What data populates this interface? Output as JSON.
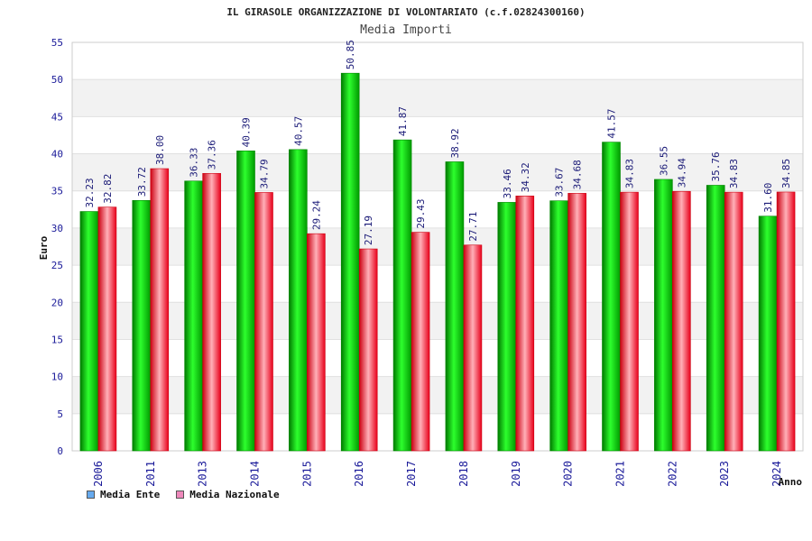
{
  "colors": {
    "ente": "#00cc00",
    "nazionale": "#ff2233",
    "legend_ente": "#66aaee",
    "legend_nazionale": "#ee88bb",
    "text": "#1a1a99"
  },
  "chart_data": {
    "type": "bar",
    "title": "IL GIRASOLE ORGANIZZAZIONE DI VOLONTARIATO (c.f.02824300160)",
    "subtitle": "Media Importi",
    "xlabel": "Anno",
    "ylabel": "Euro",
    "ylim": [
      0,
      55
    ],
    "yticks": [
      0,
      5,
      10,
      15,
      20,
      25,
      30,
      35,
      40,
      45,
      50,
      55
    ],
    "categories": [
      "2006",
      "2011",
      "2013",
      "2014",
      "2015",
      "2016",
      "2017",
      "2018",
      "2019",
      "2020",
      "2021",
      "2022",
      "2023",
      "2024"
    ],
    "series": [
      {
        "name": "Media Ente",
        "values": [
          32.23,
          33.72,
          36.33,
          40.39,
          40.57,
          50.85,
          41.87,
          38.92,
          33.46,
          33.67,
          41.57,
          36.55,
          35.76,
          31.6
        ],
        "labels": [
          "32.23",
          "33.72",
          "36.33",
          "40.39",
          "40.57",
          "50.85",
          "41.87",
          "38.92",
          "33.46",
          "33.67",
          "41.57",
          "36.55",
          "35.76",
          "31.60"
        ]
      },
      {
        "name": "Media Nazionale",
        "values": [
          32.82,
          38.0,
          37.36,
          34.79,
          29.24,
          27.19,
          29.43,
          27.71,
          34.32,
          34.68,
          34.83,
          34.94,
          34.83,
          34.85
        ],
        "labels": [
          "32.82",
          "38.00",
          "37.36",
          "34.79",
          "29.24",
          "27.19",
          "29.43",
          "27.71",
          "34.32",
          "34.68",
          "34.83",
          "34.94",
          "34.83",
          "34.85"
        ]
      }
    ],
    "grid": true,
    "legend": "bottom-left"
  }
}
